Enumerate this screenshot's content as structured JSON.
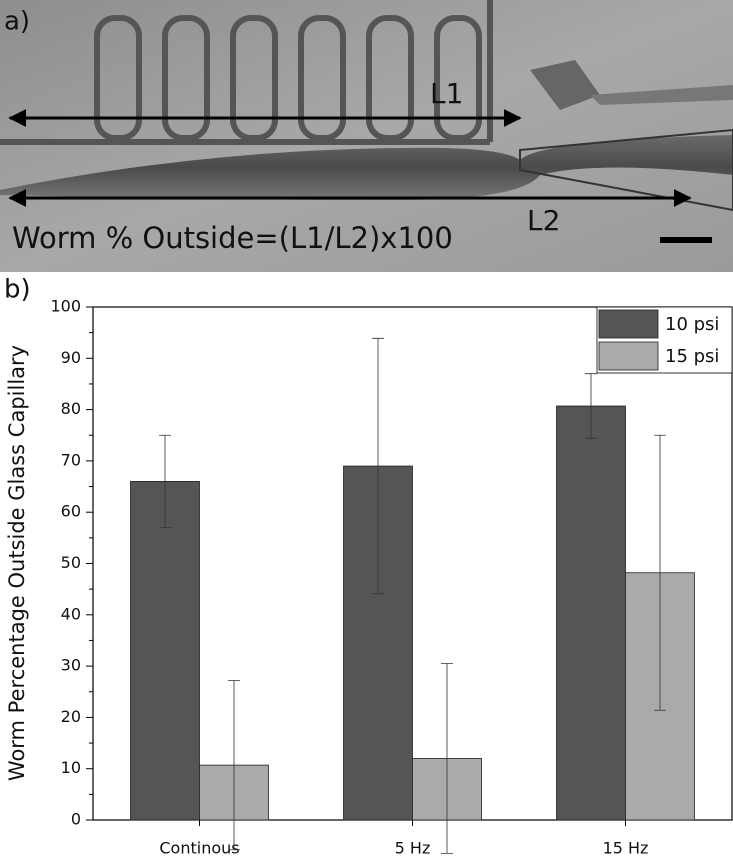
{
  "panel_a": {
    "label": "a)",
    "l1": "L1",
    "l2": "L2",
    "formula": "Worm % Outside=(L1/L2)x100"
  },
  "chart_data": {
    "type": "bar",
    "panel_label": "b)",
    "y_label": "Worm Percentage Outside Glass Capillary",
    "categories": [
      "Continous",
      "5 Hz",
      "15 Hz"
    ],
    "series": [
      {
        "name": "10 psi",
        "color": "#555555",
        "values": [
          66,
          69,
          80.7
        ],
        "errors": [
          9,
          24.9,
          6.3
        ]
      },
      {
        "name": "15 psi",
        "color": "#aaaaaa",
        "values": [
          10.7,
          12,
          48.2
        ],
        "errors": [
          16.5,
          18.5,
          26.8
        ]
      }
    ],
    "ylim": [
      0,
      100
    ],
    "yticks": [
      0,
      10,
      20,
      30,
      40,
      50,
      60,
      70,
      80,
      90,
      100
    ],
    "minor_yticks": [
      5,
      15,
      25,
      35,
      45,
      55,
      65,
      75,
      85,
      95
    ],
    "legend": "top-right"
  }
}
